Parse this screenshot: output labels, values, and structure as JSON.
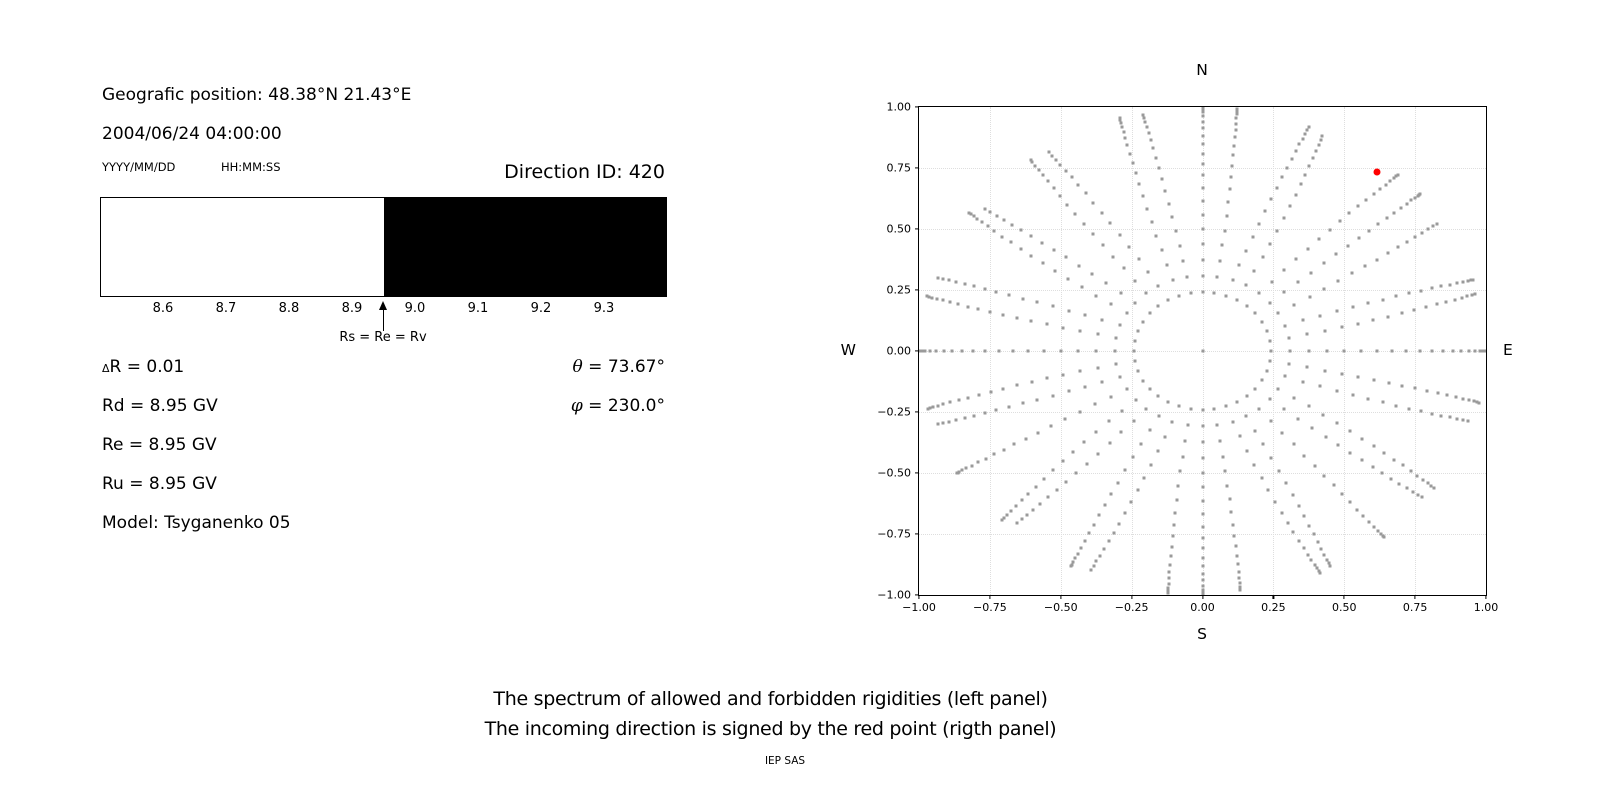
{
  "left_panel": {
    "position_line": "Geografic position: 48.38°N 21.43°E",
    "datetime_line": "2004/06/24 04:00:00",
    "date_format_label": "YYYY/MM/DD",
    "time_format_label": "HH:MM:SS",
    "direction_id_line": "Direction ID: 420",
    "spectrum": {
      "range_gv": [
        8.5,
        9.4
      ],
      "boundary_gv": 8.95,
      "allowed_color": "#ffffff",
      "forbidden_color": "#000000",
      "tick_labels": [
        "8.6",
        "8.7",
        "8.8",
        "8.9",
        "9.0",
        "9.1",
        "9.2",
        "9.3"
      ],
      "tick_values": [
        8.6,
        8.7,
        8.8,
        8.9,
        9.0,
        9.1,
        9.2,
        9.3
      ],
      "arrow_label": "Rs = Re = Rv"
    },
    "values_left": [
      {
        "prefix": "Δ",
        "text": "R = 0.01"
      },
      {
        "prefix": "",
        "text": "Rd = 8.95 GV"
      },
      {
        "prefix": "",
        "text": "Re = 8.95 GV"
      },
      {
        "prefix": "",
        "text": "Ru = 8.95 GV"
      },
      {
        "prefix": "",
        "text": "Model: Tsyganenko 05"
      }
    ],
    "values_right": [
      {
        "sym": "θ",
        "text": " = 73.67°"
      },
      {
        "sym": "φ",
        "text": " = 230.0°"
      }
    ]
  },
  "chart_data": {
    "type": "scatter",
    "compass": {
      "top": "N",
      "bottom": "S",
      "left": "W",
      "right": "E"
    },
    "xlim": [
      -1.0,
      1.0
    ],
    "ylim": [
      -1.0,
      1.0
    ],
    "x_ticks": [
      -1.0,
      -0.75,
      -0.5,
      -0.25,
      0.0,
      0.25,
      0.5,
      0.75,
      1.0
    ],
    "y_ticks": [
      -1.0,
      -0.75,
      -0.5,
      -0.25,
      0.0,
      0.25,
      0.5,
      0.75,
      1.0
    ],
    "x_tick_labels": [
      "−1.00",
      "−0.75",
      "−0.50",
      "−0.25",
      "0.00",
      "0.25",
      "0.50",
      "0.75",
      "1.00"
    ],
    "y_tick_labels": [
      "−1.00",
      "−0.75",
      "−0.50",
      "−0.25",
      "0.00",
      "0.25",
      "0.50",
      "0.75",
      "1.00"
    ],
    "grid": true,
    "direction_grid": {
      "note": "gray dots at x=r·sin(az), y=r·cos(az); r=sin(zenith)",
      "azimuth_start_deg": 0,
      "azimuth_step_deg": 10,
      "azimuth_count": 36,
      "zenith_start_deg": 14,
      "zenith_step_deg": 4,
      "zenith_max_deg_per_azimuth": [
        90,
        86,
        82,
        78,
        86,
        90,
        78,
        86,
        82,
        90,
        86,
        78,
        82,
        78,
        86,
        82,
        90,
        82,
        90,
        86,
        78,
        86,
        74,
        82,
        90,
        78,
        86,
        90,
        86,
        78,
        90,
        74,
        82,
        78,
        86,
        82
      ],
      "curl_deg_per_unit_radius": [
        0,
        -4,
        3,
        -6,
        5,
        0,
        -3,
        4,
        -5,
        0,
        3,
        -4,
        6,
        -3,
        0,
        4,
        -6,
        3,
        0,
        -4,
        5,
        -3,
        4,
        -6,
        0,
        3,
        -5,
        0,
        4,
        -3,
        6,
        -4,
        3,
        -5,
        4,
        -3
      ],
      "center_dot": true
    },
    "red_point": {
      "x": 0.617,
      "y": 0.735,
      "azimuth_deg": 40,
      "radius": 0.96
    },
    "colors": {
      "dots": "#9a9a9a",
      "red_point": "#ff0000",
      "grid": "#dedede",
      "axes": "#000000"
    }
  },
  "captions": {
    "line1": "The spectrum of allowed and forbidden rigidities (left panel)",
    "line2": "The incoming direction is signed by the red point (rigth panel)",
    "credit": "IEP SAS"
  }
}
